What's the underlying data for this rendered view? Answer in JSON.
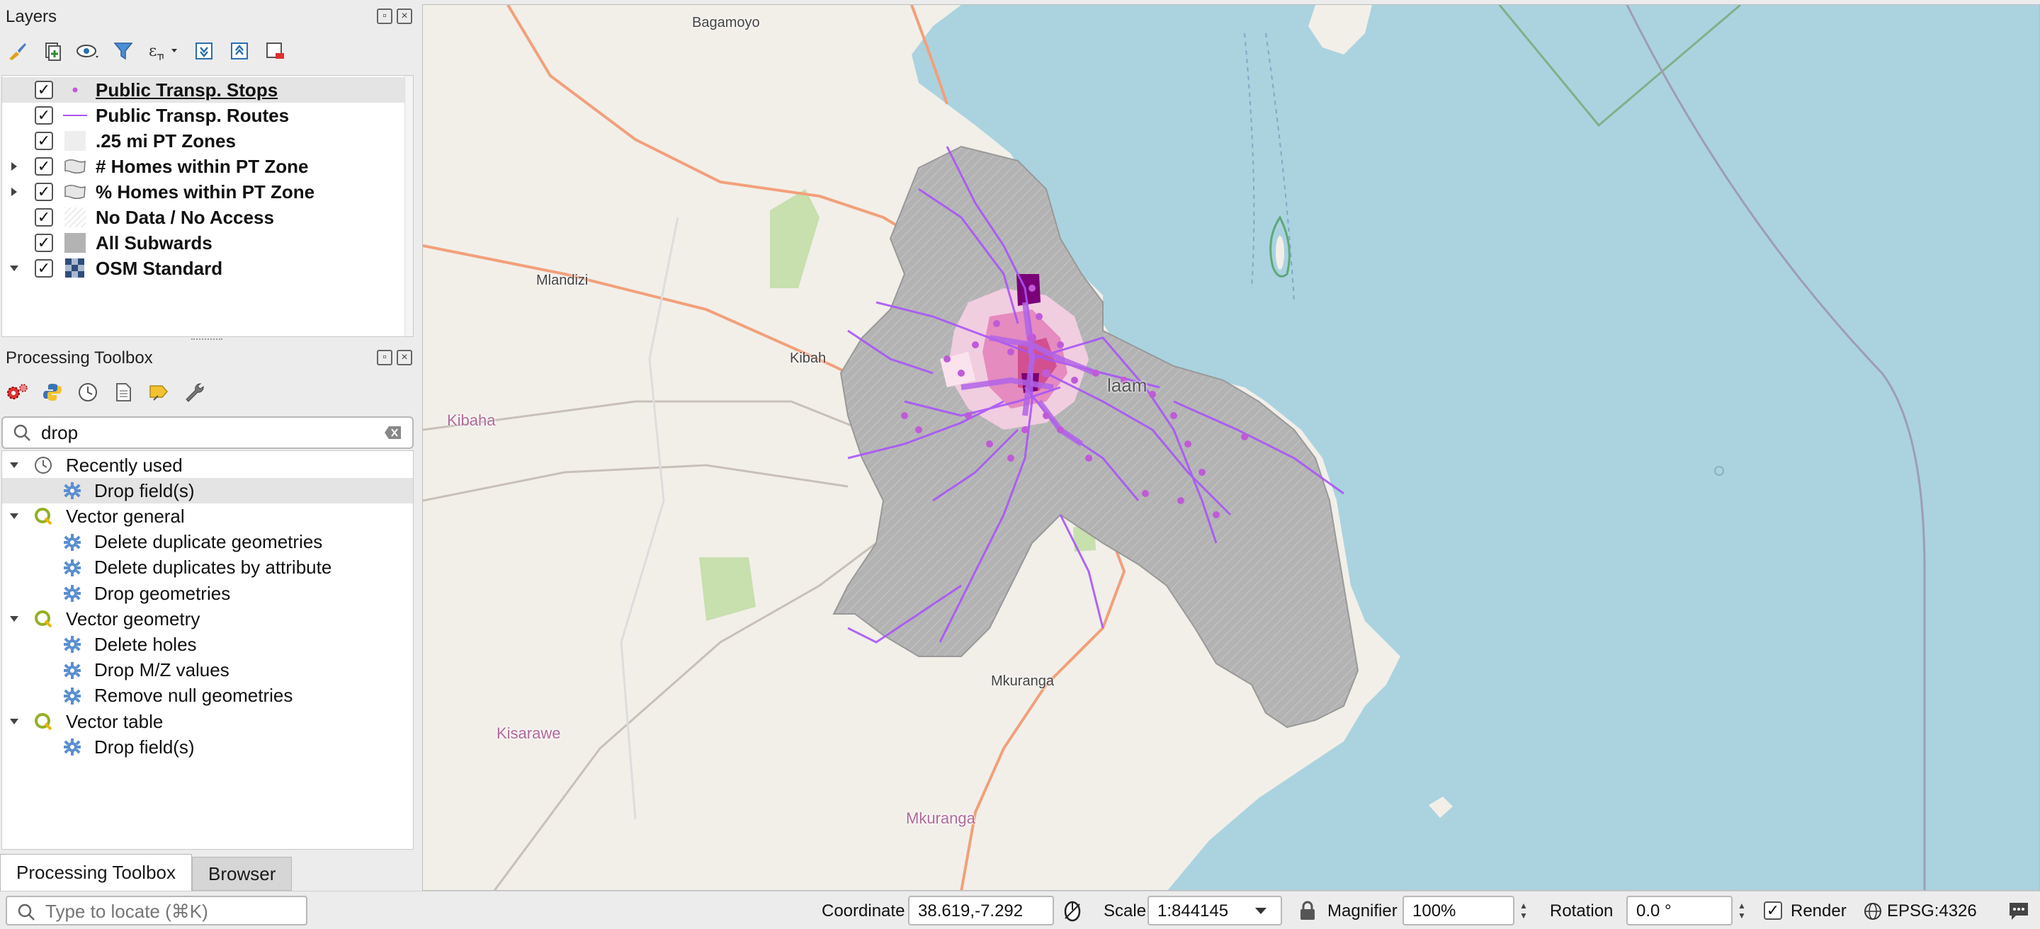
{
  "layers_panel": {
    "title": "Layers",
    "items": [
      {
        "name": "Public Transp. Stops",
        "checked": "✓",
        "symbol": "point-icon",
        "selected": true
      },
      {
        "name": "Public Transp.  Routes",
        "checked": "✓",
        "symbol": "line-icon"
      },
      {
        "name": ".25 mi PT Zones",
        "checked": "✓",
        "symbol": "fill-icon"
      },
      {
        "name": "# Homes within PT Zone",
        "checked": "✓",
        "symbol": "group-polygon-icon",
        "expandable": true
      },
      {
        "name": "% Homes within PT Zone",
        "checked": "✓",
        "symbol": "group-polygon-icon",
        "expandable": true
      },
      {
        "name": "No Data / No Access",
        "checked": "✓",
        "symbol": "hatch-fill-icon"
      },
      {
        "name": "All Subwards",
        "checked": "✓",
        "symbol": "grey-fill-icon"
      },
      {
        "name": "OSM Standard",
        "checked": "✓",
        "symbol": "raster-icon",
        "expanded": true
      }
    ]
  },
  "processing_panel": {
    "title": "Processing Toolbox",
    "search_value": "drop",
    "groups": [
      {
        "label": "Recently used",
        "icon": "clock-icon",
        "items": [
          "Drop field(s)"
        ]
      },
      {
        "label": "Vector general",
        "icon": "qgis-icon",
        "items": [
          "Delete duplicate geometries",
          "Delete duplicates by attribute",
          "Drop geometries"
        ]
      },
      {
        "label": "Vector geometry",
        "icon": "qgis-icon",
        "items": [
          "Delete holes",
          "Drop M/Z values",
          "Remove null geometries"
        ]
      },
      {
        "label": "Vector table",
        "icon": "qgis-icon",
        "items": [
          "Drop field(s)"
        ]
      }
    ]
  },
  "tabs": {
    "processing": "Processing Toolbox",
    "browser": "Browser"
  },
  "map": {
    "places": {
      "bagamoyo": "Bagamoyo",
      "mlandizi": "Mlandizi",
      "kibah_town": "Kibah",
      "kibaha": "Kibaha",
      "kisarawe": "Kisarawe",
      "mkuranga_town": "Mkuranga",
      "mkuranga_region": "Mkuranga",
      "dar_partial": "laam"
    }
  },
  "statusbar": {
    "locate_placeholder": "Type to locate (⌘K)",
    "coordinate_label": "Coordinate",
    "coordinate_value": "38.619,-7.292",
    "scale_label": "Scale",
    "scale_value": "1:844145",
    "magnifier_label": "Magnifier",
    "magnifier_value": "100%",
    "rotation_label": "Rotation",
    "rotation_value": "0.0 °",
    "render_label": "Render",
    "render_checked": "✓",
    "crs": "EPSG:4326"
  },
  "colors": {
    "sea": "#aad3df",
    "land": "#f2efe9",
    "subwards": "#b3b3b3",
    "routes": "#a855f7",
    "choropleth_dark": "#7a0177"
  }
}
